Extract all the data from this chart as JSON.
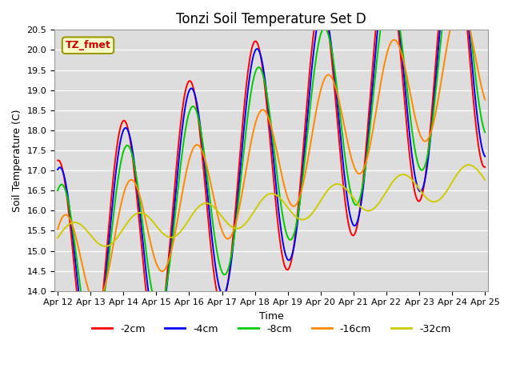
{
  "title": "Tonzi Soil Temperature Set D",
  "xlabel": "Time",
  "ylabel": "Soil Temperature (C)",
  "ylim": [
    14.0,
    20.5
  ],
  "yticks": [
    14.0,
    14.5,
    15.0,
    15.5,
    16.0,
    16.5,
    17.0,
    17.5,
    18.0,
    18.5,
    19.0,
    19.5,
    20.0,
    20.5
  ],
  "legend_labels": [
    "-2cm",
    "-4cm",
    "-8cm",
    "-16cm",
    "-32cm"
  ],
  "legend_colors": [
    "#ff0000",
    "#0000ff",
    "#00cc00",
    "#ff8800",
    "#cccc00"
  ],
  "annotation_text": "TZ_fmet",
  "annotation_bg": "#ffffcc",
  "annotation_border": "#999900",
  "bg_color": "#dddddd",
  "line_width": 1.4,
  "n_points": 520
}
